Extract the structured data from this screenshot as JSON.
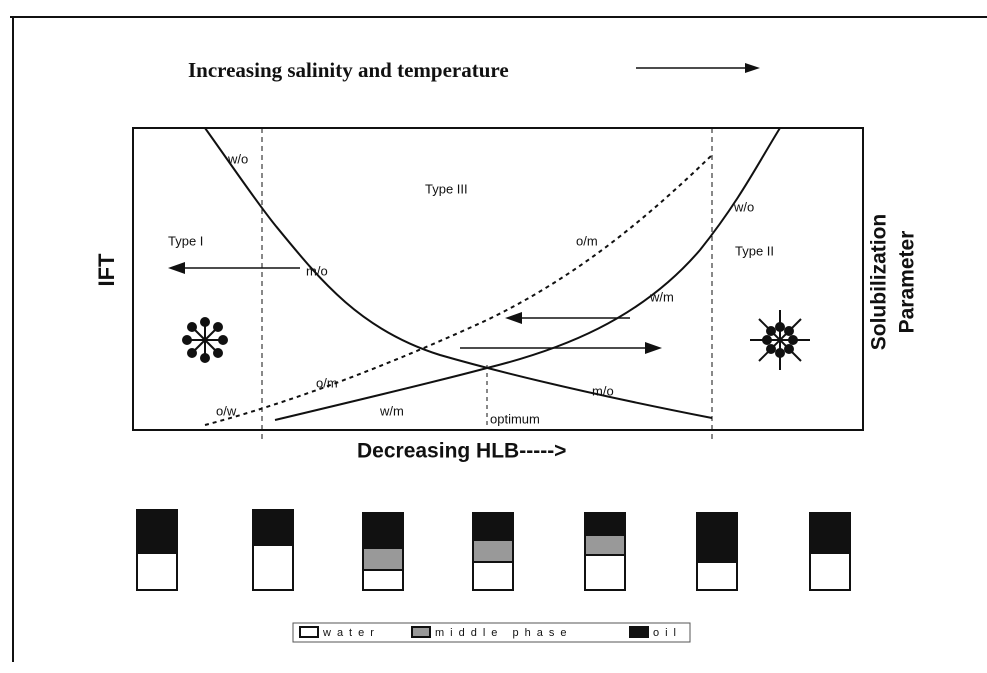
{
  "header": {
    "title": "Increasing salinity and temperature"
  },
  "axes": {
    "left": "IFT",
    "right": [
      "Solubilization",
      "Parameter"
    ],
    "bottom": "Decreasing HLB----->"
  },
  "regions": [
    "Type I",
    "Type III",
    "Type II"
  ],
  "curve_labels": [
    "w/o",
    "m/o",
    "o/m",
    "w/o",
    "w/m",
    "o/m",
    "m/o",
    "o/w",
    "w/m",
    "optimum"
  ],
  "legend": [
    "water",
    "middle phase",
    "oil"
  ]
}
